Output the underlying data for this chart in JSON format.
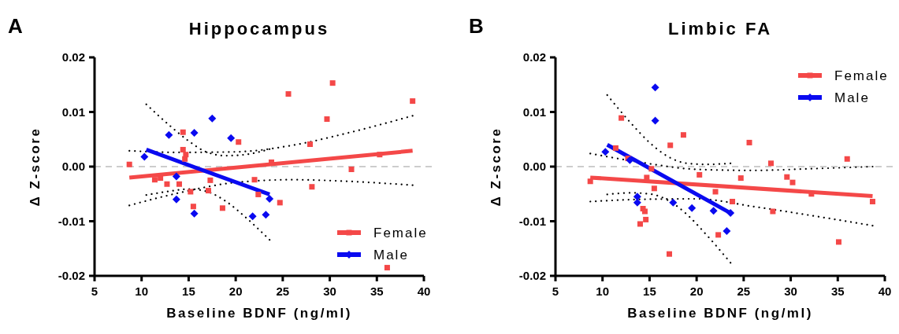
{
  "chart_data": [
    {
      "type": "scatter",
      "title": "Hippocampus",
      "xlabel": "Baseline BDNF (ng/ml)",
      "ylabel": "Δ Z-score",
      "annotations": [
        "A"
      ],
      "xlim": [
        5,
        40
      ],
      "xticks": [
        5,
        10,
        15,
        20,
        25,
        30,
        35,
        40
      ],
      "ylim": [
        -0.02,
        0.02
      ],
      "yticks": [
        {
          "value": -0.02,
          "label": "-0.02"
        },
        {
          "value": -0.01,
          "label": "-0.01"
        },
        {
          "value": 0,
          "label": "0.00"
        },
        {
          "value": 0.01,
          "label": "0.01"
        },
        {
          "value": 0.02,
          "label": "0.02"
        }
      ],
      "ref_lines": [
        {
          "axis": "y",
          "value": 0,
          "color": "#cccccc",
          "line_style": "dashed"
        }
      ],
      "legend": "bottom right",
      "series": [
        {
          "type": "line",
          "line_style": "dotted",
          "color": "#000000",
          "x": [
            8.7,
            14,
            20,
            26,
            32,
            38.8
          ],
          "values": [
            -0.0071,
            -0.0048,
            -0.0029,
            -0.0024,
            -0.0027,
            -0.0034
          ]
        },
        {
          "type": "line",
          "line_style": "dotted",
          "color": "#000000",
          "x": [
            8.7,
            14,
            20,
            26,
            32,
            38.8
          ],
          "values": [
            0.0029,
            0.0026,
            0.0027,
            0.0039,
            0.0062,
            0.0093
          ]
        },
        {
          "type": "line",
          "line_style": "dotted",
          "color": "#000000",
          "x": [
            10.5,
            13,
            15,
            17,
            19,
            21,
            23.6
          ],
          "values": [
            -0.0052,
            -0.0045,
            -0.0041,
            -0.0046,
            -0.0064,
            -0.0092,
            -0.0134
          ]
        },
        {
          "type": "line",
          "line_style": "dotted",
          "color": "#000000",
          "x": [
            10.5,
            13,
            15,
            17,
            19,
            21,
            23.6
          ],
          "values": [
            0.0114,
            0.0075,
            0.0047,
            0.0026,
            0.002,
            0.0022,
            0.0032
          ]
        },
        {
          "type": "line",
          "name": "Female",
          "color": "#f44848",
          "x": [
            8.7,
            38.8
          ],
          "values": [
            -0.002,
            0.0029
          ]
        },
        {
          "type": "line",
          "name": "Male",
          "color": "#0a0af0",
          "x": [
            10.5,
            23.6
          ],
          "values": [
            0.0031,
            -0.0051
          ]
        },
        {
          "marker": "square",
          "color": "#f44848",
          "x": [
            8.7,
            11.4,
            12.0,
            12.7,
            14.0,
            14.4,
            14.4,
            14.7,
            14.6,
            15.2,
            15.5,
            17.1,
            17.3,
            18.6,
            20.3,
            22.0,
            22.4,
            24.7,
            25.6,
            23.8,
            28.1,
            27.9,
            29.7,
            30.3,
            32.3,
            35.3,
            36.1,
            38.8
          ],
          "values": [
            0.0004,
            -0.0024,
            -0.0021,
            -0.0032,
            -0.0032,
            0.0063,
            0.0031,
            0.0022,
            0.0014,
            -0.0046,
            -0.0073,
            -0.0044,
            -0.0025,
            -0.0076,
            0.0045,
            -0.0024,
            -0.0051,
            -0.0066,
            0.0133,
            0.0008,
            -0.0037,
            0.0041,
            0.0087,
            0.0153,
            -0.0005,
            0.0022,
            -0.0185,
            0.012
          ]
        },
        {
          "marker": "diamond",
          "color": "#0a0af0",
          "x": [
            10.3,
            12.9,
            13.7,
            13.7,
            15.6,
            15.6,
            17.5,
            19.5,
            21.8,
            23.2,
            23.6
          ],
          "values": [
            0.0018,
            0.0058,
            -0.006,
            -0.0018,
            0.0062,
            -0.0086,
            0.0088,
            0.0052,
            -0.0091,
            -0.0088,
            -0.0059
          ]
        }
      ]
    },
    {
      "type": "scatter",
      "title": "Limbic FA",
      "xlabel": "Baseline BDNF (ng/ml)",
      "ylabel": "Δ Z-score",
      "annotations": [
        "B"
      ],
      "xlim": [
        5,
        40
      ],
      "xticks": [
        5,
        10,
        15,
        20,
        25,
        30,
        35,
        40
      ],
      "ylim": [
        -0.02,
        0.02
      ],
      "yticks": [
        {
          "value": -0.02,
          "label": "-0.02"
        },
        {
          "value": -0.01,
          "label": "-0.01"
        },
        {
          "value": 0,
          "label": "0.00"
        },
        {
          "value": 0.01,
          "label": "0.01"
        },
        {
          "value": 0.02,
          "label": "0.02"
        }
      ],
      "ref_lines": [
        {
          "axis": "y",
          "value": 0,
          "color": "#cccccc",
          "line_style": "dashed"
        }
      ],
      "legend": "top right",
      "series": [
        {
          "type": "line",
          "line_style": "dotted",
          "color": "#000000",
          "x": [
            8.7,
            14,
            20,
            26,
            32,
            38.7
          ],
          "values": [
            -0.0064,
            -0.006,
            -0.0059,
            -0.0073,
            -0.0089,
            -0.0108
          ]
        },
        {
          "type": "line",
          "line_style": "dotted",
          "color": "#000000",
          "x": [
            8.7,
            14,
            20,
            26,
            32,
            38.7
          ],
          "values": [
            0.0024,
            0.0008,
            -0.0005,
            -0.0007,
            -0.0004,
            0.0
          ]
        },
        {
          "type": "line",
          "line_style": "dotted",
          "color": "#000000",
          "x": [
            10.5,
            13,
            15,
            17,
            19,
            21,
            23.6
          ],
          "values": [
            -0.0051,
            -0.0048,
            -0.005,
            -0.0062,
            -0.0088,
            -0.0124,
            -0.0176
          ]
        },
        {
          "type": "line",
          "line_style": "dotted",
          "color": "#000000",
          "x": [
            10.5,
            13,
            15,
            17,
            19,
            21,
            23.6
          ],
          "values": [
            0.0131,
            0.008,
            0.0044,
            0.0018,
            0.0006,
            0.0004,
            0.0006
          ]
        },
        {
          "type": "line",
          "name": "Female",
          "color": "#f44848",
          "x": [
            8.7,
            38.7
          ],
          "values": [
            -0.002,
            -0.0054
          ]
        },
        {
          "type": "line",
          "name": "Male",
          "color": "#0a0af0",
          "x": [
            10.5,
            23.6
          ],
          "values": [
            0.004,
            -0.0085
          ]
        },
        {
          "marker": "square",
          "color": "#f44848",
          "x": [
            8.7,
            12.0,
            11.4,
            12.7,
            15.2,
            14.7,
            15.5,
            14.3,
            14.5,
            14.6,
            14.0,
            17.2,
            18.6,
            17.1,
            20.3,
            22.0,
            22.3,
            23.8,
            24.7,
            25.6,
            27.9,
            28.1,
            29.6,
            30.2,
            32.2,
            35.1,
            36.0,
            38.7
          ],
          "values": [
            -0.0027,
            0.0089,
            0.0034,
            0.0015,
            -0.0004,
            -0.002,
            -0.004,
            -0.0077,
            -0.0082,
            -0.0097,
            -0.0105,
            0.0039,
            0.0058,
            -0.016,
            -0.0015,
            -0.0046,
            -0.0125,
            -0.0064,
            -0.0021,
            0.0044,
            0.0006,
            -0.0082,
            -0.0019,
            -0.0029,
            -0.005,
            -0.0138,
            0.0014,
            -0.0064
          ]
        },
        {
          "marker": "diamond",
          "color": "#0a0af0",
          "x": [
            10.3,
            12.9,
            15.6,
            15.6,
            13.7,
            13.7,
            17.5,
            19.5,
            21.8,
            23.2,
            23.6
          ],
          "values": [
            0.0027,
            0.0012,
            0.0145,
            0.0084,
            -0.0055,
            -0.0066,
            -0.0066,
            -0.0076,
            -0.0081,
            -0.0118,
            -0.0085
          ]
        }
      ]
    }
  ]
}
